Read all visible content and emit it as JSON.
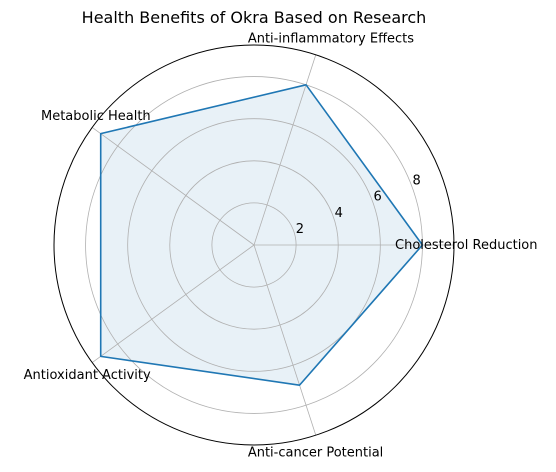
{
  "chart_data": {
    "type": "radar",
    "title": "Health Benefits of Okra Based on Research",
    "categories": [
      "Cholesterol Reduction",
      "Anti-inflammatory Effects",
      "Metabolic Health",
      "Antioxidant Activity",
      "Anti-cancer Potential"
    ],
    "values": [
      8,
      8,
      9,
      9,
      7
    ],
    "r_ticks": [
      2,
      4,
      6,
      8
    ],
    "rlim": [
      0,
      9.5
    ],
    "grid": true,
    "colors": {
      "line": "#1f77b4",
      "fill": "#1f77b4",
      "fill_opacity": 0.1,
      "grid": "#b0b0b0",
      "frame": "#000000"
    }
  }
}
